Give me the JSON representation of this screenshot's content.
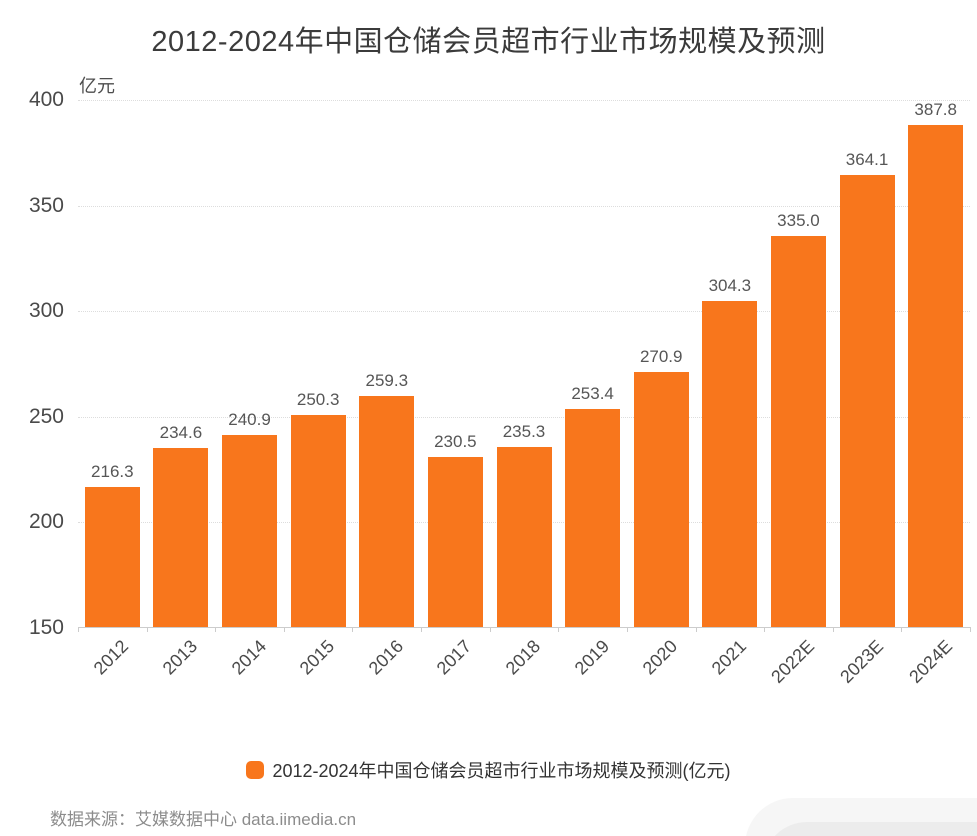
{
  "title": "2012-2024年中国仓储会员超市行业市场规模及预测",
  "y_unit": "亿元",
  "chart_data": {
    "type": "bar",
    "title": "2012-2024年中国仓储会员超市行业市场规模及预测",
    "categories": [
      "2012",
      "2013",
      "2014",
      "2015",
      "2016",
      "2017",
      "2018",
      "2019",
      "2020",
      "2021",
      "2022E",
      "2023E",
      "2024E"
    ],
    "values": [
      216.3,
      234.6,
      240.9,
      250.3,
      259.3,
      230.5,
      235.3,
      253.4,
      270.9,
      304.3,
      335.0,
      364.1,
      387.8
    ],
    "value_labels": [
      "216.3",
      "234.6",
      "240.9",
      "250.3",
      "259.3",
      "230.5",
      "235.3",
      "253.4",
      "270.9",
      "304.3",
      "335.0",
      "364.1",
      "387.8"
    ],
    "xlabel": "",
    "ylabel": "亿元",
    "ylim": [
      150,
      400
    ],
    "yticks": [
      150,
      200,
      250,
      300,
      350,
      400
    ],
    "grid": "horizontal-dotted",
    "legend_position": "bottom",
    "bar_color": "#f8761c",
    "legend_entries": [
      "2012-2024年中国仓储会员超市行业市场规模及预测(亿元)"
    ]
  },
  "legend": {
    "label": "2012-2024年中国仓储会员超市行业市场规模及预测(亿元)",
    "marker_color": "#f8761c"
  },
  "source": "数据来源：艾媒数据中心 data.iimedia.cn"
}
